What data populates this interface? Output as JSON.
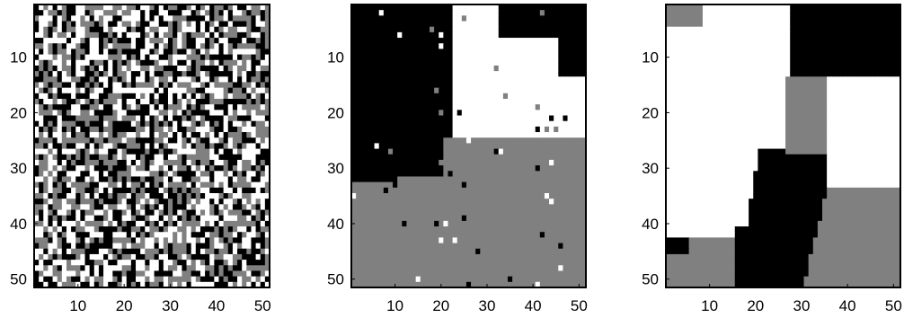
{
  "chart_data": [
    {
      "type": "heatmap",
      "title": "",
      "xlabel": "",
      "ylabel": "",
      "xlim": [
        1,
        51
      ],
      "ylim": [
        1,
        51
      ],
      "x_ticks": [
        "10",
        "20",
        "30",
        "40",
        "50"
      ],
      "y_ticks": [
        "10",
        "20",
        "30",
        "40",
        "50"
      ],
      "colors": [
        "#000000",
        "#808080",
        "#ffffff"
      ],
      "grid": false,
      "description": "noisy",
      "seed": 7
    },
    {
      "type": "heatmap",
      "title": "",
      "xlabel": "",
      "ylabel": "",
      "xlim": [
        1,
        51
      ],
      "ylim": [
        1,
        51
      ],
      "x_ticks": [
        "10",
        "20",
        "30",
        "40",
        "50"
      ],
      "y_ticks": [
        "10",
        "20",
        "30",
        "40",
        "50"
      ],
      "colors": [
        "#000000",
        "#808080",
        "#ffffff"
      ],
      "grid": false,
      "description": "partial",
      "seed": 13
    },
    {
      "type": "heatmap",
      "title": "",
      "xlabel": "",
      "ylabel": "",
      "xlim": [
        1,
        51
      ],
      "ylim": [
        1,
        51
      ],
      "x_ticks": [
        "10",
        "20",
        "30",
        "40",
        "50"
      ],
      "y_ticks": [
        "10",
        "20",
        "30",
        "40",
        "50"
      ],
      "colors": [
        "#000000",
        "#808080",
        "#ffffff"
      ],
      "grid": false,
      "description": "smooth",
      "seed": 21
    }
  ]
}
